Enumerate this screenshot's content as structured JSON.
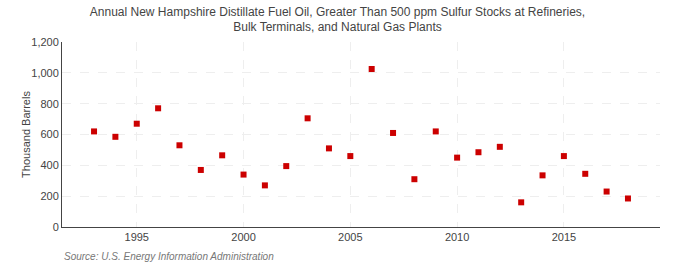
{
  "chart_data": {
    "type": "scatter",
    "title": "Annual New Hampshire Distillate Fuel Oil, Greater Than 500 ppm Sulfur Stocks at Refineries,\nBulk Terminals, and Natural Gas Plants",
    "ylabel": "Thousand Barrels",
    "annotations": [
      "Source: U.S. Energy Information Administration"
    ],
    "x": [
      1993,
      1994,
      1995,
      1996,
      1997,
      1998,
      1999,
      2000,
      2001,
      2002,
      2003,
      2004,
      2005,
      2006,
      2007,
      2008,
      2009,
      2010,
      2011,
      2012,
      2013,
      2014,
      2015,
      2016,
      2017,
      2018
    ],
    "values": [
      620,
      585,
      670,
      770,
      530,
      370,
      465,
      340,
      270,
      395,
      705,
      510,
      460,
      1025,
      610,
      310,
      620,
      450,
      485,
      520,
      160,
      335,
      460,
      345,
      230,
      185
    ],
    "color": "#cc0000",
    "marker": "square",
    "xlim": [
      1991.5,
      2019.5
    ],
    "xticks": [
      1995,
      2000,
      2005,
      2010,
      2015
    ],
    "ylim": [
      0,
      1200
    ],
    "yticks": [
      0,
      200,
      400,
      600,
      800,
      {
        "value": 1000,
        "label": "1,000"
      },
      {
        "value": 1200,
        "label": "1,200"
      }
    ],
    "grid": true
  }
}
